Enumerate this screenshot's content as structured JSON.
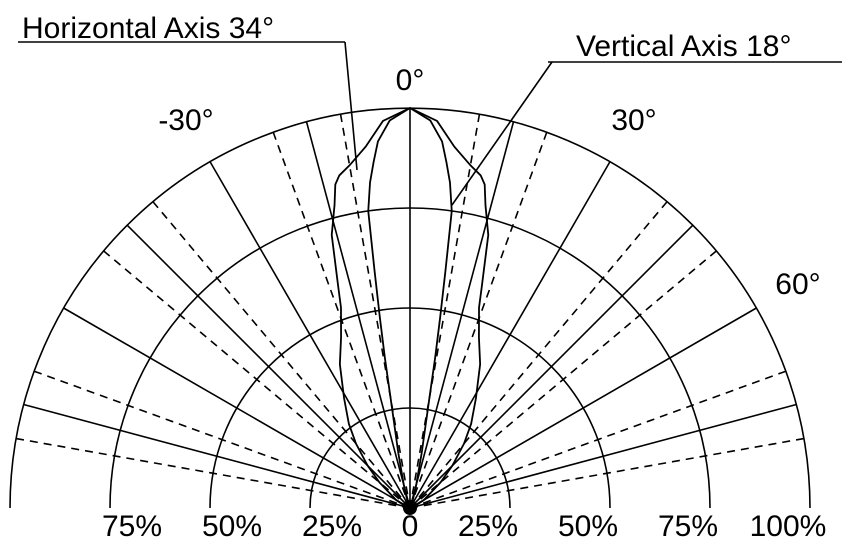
{
  "chart_data": {
    "type": "polar",
    "xlim": [
      -100,
      100
    ],
    "xticks": [
      {
        "value": -75,
        "label": "75%"
      },
      {
        "value": -50,
        "label": "50%"
      },
      {
        "value": -25,
        "label": "25%"
      },
      0,
      {
        "value": 25,
        "label": "25%"
      },
      {
        "value": 50,
        "label": "50%"
      },
      {
        "value": 75,
        "label": "75%"
      },
      {
        "value": 100,
        "label": "100%"
      }
    ],
    "rticks": [
      25,
      50,
      75,
      100
    ],
    "angle_ticks": [
      {
        "value": -30,
        "label": "-30°"
      },
      {
        "value": 0,
        "label": "0°"
      },
      {
        "value": 30,
        "label": "30°"
      },
      {
        "value": 60,
        "label": "60°"
      }
    ],
    "major_angles": [
      -75,
      -60,
      -45,
      -30,
      -15,
      0,
      15,
      30,
      45,
      60,
      75
    ],
    "minor_angles": [
      -80,
      -70,
      -50,
      -40,
      -20,
      -10,
      10,
      20,
      40,
      50,
      70,
      80
    ],
    "series": [
      {
        "name": "Horizontal Axis 34°",
        "color": "#000000",
        "x": [
          -90,
          -70,
          -60,
          -50,
          -45,
          -40,
          -36,
          -31,
          -26,
          -22,
          -19,
          -18,
          -16,
          -14,
          -13,
          -12,
          -10,
          -7,
          -4,
          0,
          4,
          7,
          10,
          12,
          13,
          14,
          16,
          18,
          19,
          22,
          26,
          31,
          36,
          40,
          45,
          50,
          60,
          70,
          90
        ],
        "values": [
          0,
          1,
          4,
          10,
          15,
          21,
          26,
          32,
          40,
          46,
          53,
          58,
          71,
          78,
          83,
          85,
          87,
          91,
          97,
          100,
          97,
          91,
          87,
          85,
          83,
          78,
          71,
          58,
          53,
          46,
          40,
          32,
          26,
          21,
          15,
          10,
          4,
          1,
          0
        ]
      },
      {
        "name": "Vertical Axis 18°",
        "color": "#000000",
        "x": [
          -30,
          -20,
          -15,
          -12,
          -10,
          -9.5,
          -9,
          -8.5,
          -8,
          -7,
          -6,
          -5,
          -3,
          0,
          3,
          5,
          6,
          7,
          8,
          8.5,
          9,
          9.5,
          10,
          12,
          15,
          20,
          30
        ],
        "values": [
          0,
          2,
          6,
          14,
          28,
          38,
          48,
          60,
          75,
          82,
          87,
          92,
          97,
          100,
          97,
          92,
          87,
          82,
          75,
          60,
          48,
          38,
          28,
          14,
          6,
          2,
          0
        ]
      }
    ]
  }
}
